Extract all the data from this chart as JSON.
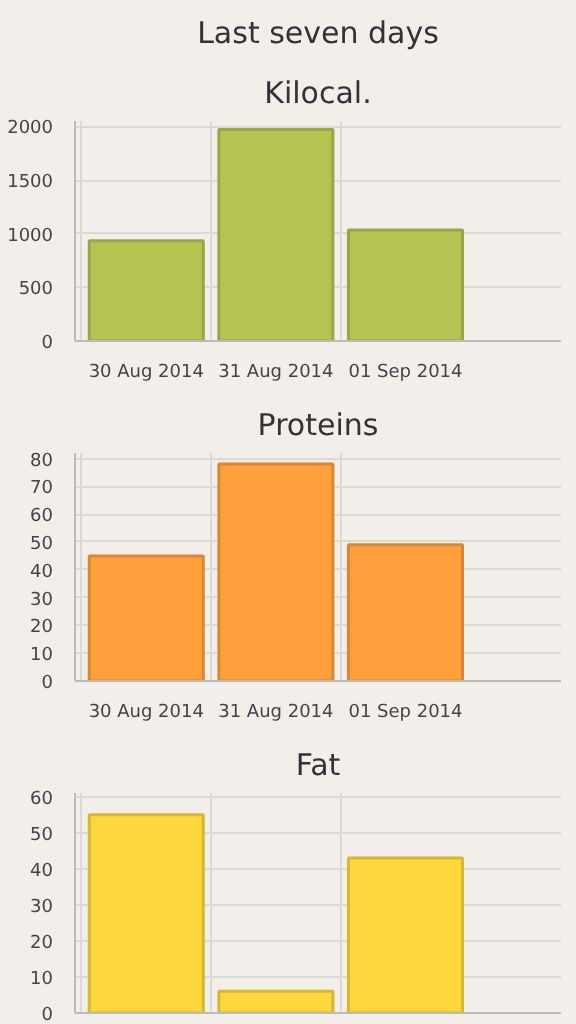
{
  "chart_data": [
    {
      "type": "bar",
      "title": "Last seven days",
      "subtitle": "Kilocal.",
      "categories": [
        "30 Aug 2014",
        "31 Aug 2014",
        "01 Sep 2014"
      ],
      "values": [
        935,
        1970,
        1035
      ],
      "color": "#b5c451",
      "ylim": [
        0,
        2050
      ],
      "yticks": [
        0,
        500,
        1000,
        1500,
        2000
      ],
      "grid": true
    },
    {
      "type": "bar",
      "title": "Proteins",
      "categories": [
        "30 Aug 2014",
        "31 Aug 2014",
        "01 Sep 2014"
      ],
      "values": [
        45,
        78,
        49
      ],
      "color": "#ffa03c",
      "ylim": [
        0,
        82
      ],
      "yticks": [
        0,
        10,
        20,
        30,
        40,
        50,
        60,
        70,
        80
      ],
      "grid": true
    },
    {
      "type": "bar",
      "title": "Fat",
      "categories": [
        null,
        null,
        null
      ],
      "values": [
        55,
        6,
        43
      ],
      "color": "#fdd73c",
      "ylim": [
        0,
        61
      ],
      "yticks": [
        0,
        10,
        20,
        30,
        40,
        50,
        60
      ],
      "grid": true,
      "tick_labels": "y"
    }
  ]
}
